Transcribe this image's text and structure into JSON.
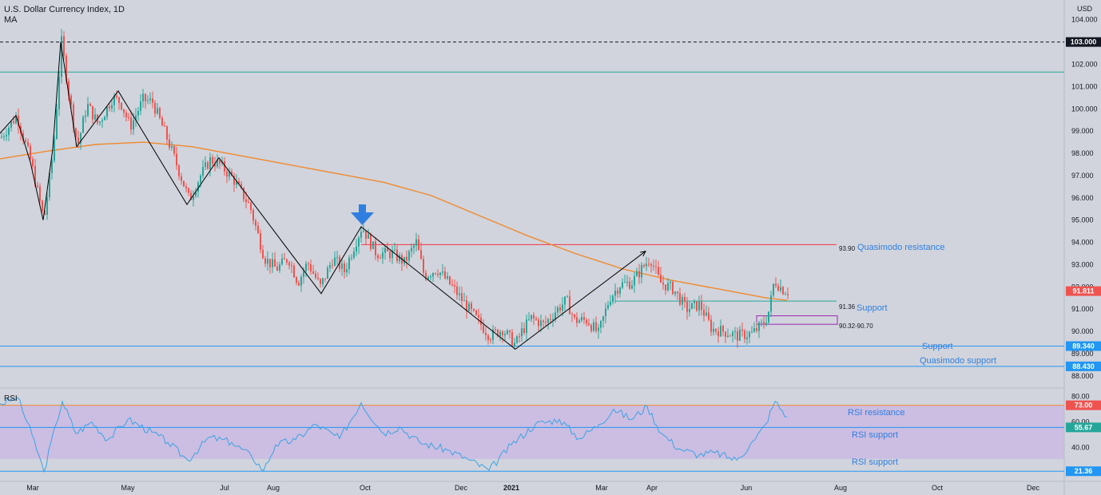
{
  "header": {
    "title": "U.S. Dollar Currency Index, 1D",
    "indicator": "MA",
    "currency": "USD"
  },
  "colors": {
    "up": "#26a69a",
    "down": "#ef5350",
    "ma": "#f0892e",
    "resistance": "#f23645",
    "support": "#2196f3",
    "text_blue": "#2f7fe0",
    "rsi_line": "#3aa3e3",
    "rsi_band": "#c9b6e4",
    "pattern": "#000000",
    "zone": "#9c27b0"
  },
  "chart_data": [
    {
      "type": "candlestick",
      "title": "U.S. Dollar Currency Index, 1D",
      "ylim": [
        87.6,
        104.6
      ],
      "y_ticks": [
        "104.000",
        "103.000",
        "102.000",
        "101.000",
        "100.000",
        "99.000",
        "98.000",
        "97.000",
        "96.000",
        "95.000",
        "94.000",
        "93.000",
        "92.000",
        "91.000",
        "90.000",
        "89.000",
        "88.000"
      ],
      "x_ticks": [
        "Mar",
        "May",
        "Jul",
        "Aug",
        "Oct",
        "Dec",
        "2021",
        "Mar",
        "Apr",
        "Jun",
        "Aug",
        "Oct",
        "Dec"
      ],
      "last_price": "91.811",
      "price_path": [
        [
          0,
          98.7
        ],
        [
          20,
          99.7
        ],
        [
          38,
          97.6
        ],
        [
          54,
          95.0
        ],
        [
          66,
          98.2
        ],
        [
          76,
          103.0
        ],
        [
          86,
          100.5
        ],
        [
          96,
          98.3
        ],
        [
          108,
          100.2
        ],
        [
          122,
          99.3
        ],
        [
          140,
          100.5
        ],
        [
          150,
          100.3
        ],
        [
          162,
          99.2
        ],
        [
          178,
          100.4
        ],
        [
          190,
          100.3
        ],
        [
          210,
          98.5
        ],
        [
          236,
          95.9
        ],
        [
          250,
          97.0
        ],
        [
          262,
          97.7
        ],
        [
          274,
          97.5
        ],
        [
          290,
          96.9
        ],
        [
          312,
          95.6
        ],
        [
          330,
          93.3
        ],
        [
          345,
          92.8
        ],
        [
          360,
          93.3
        ],
        [
          372,
          92.2
        ],
        [
          384,
          93.1
        ],
        [
          400,
          92.0
        ],
        [
          416,
          93.3
        ],
        [
          430,
          92.7
        ],
        [
          444,
          94.0
        ],
        [
          452,
          94.7
        ],
        [
          470,
          93.5
        ],
        [
          490,
          93.5
        ],
        [
          505,
          93.1
        ],
        [
          520,
          94.0
        ],
        [
          530,
          92.5
        ],
        [
          546,
          92.8
        ],
        [
          565,
          92.0
        ],
        [
          590,
          90.8
        ],
        [
          612,
          89.8
        ],
        [
          628,
          90.1
        ],
        [
          644,
          89.4
        ],
        [
          652,
          90.0
        ],
        [
          664,
          90.6
        ],
        [
          680,
          90.3
        ],
        [
          694,
          90.9
        ],
        [
          708,
          91.4
        ],
        [
          718,
          90.5
        ],
        [
          734,
          90.5
        ],
        [
          748,
          89.9
        ],
        [
          762,
          91.5
        ],
        [
          775,
          92.1
        ],
        [
          790,
          92.2
        ],
        [
          804,
          92.9
        ],
        [
          813,
          93.3
        ],
        [
          825,
          92.2
        ],
        [
          842,
          91.9
        ],
        [
          858,
          91.0
        ],
        [
          875,
          91.2
        ],
        [
          890,
          90.1
        ],
        [
          905,
          90.0
        ],
        [
          922,
          89.8
        ],
        [
          940,
          89.9
        ],
        [
          956,
          90.4
        ],
        [
          962,
          91.0
        ],
        [
          968,
          92.3
        ],
        [
          978,
          91.9
        ],
        [
          985,
          91.8
        ]
      ]
    },
    {
      "type": "line",
      "name": "MA",
      "points": [
        [
          0,
          97.75
        ],
        [
          60,
          98.1
        ],
        [
          120,
          98.4
        ],
        [
          180,
          98.5
        ],
        [
          240,
          98.3
        ],
        [
          300,
          97.9
        ],
        [
          360,
          97.5
        ],
        [
          420,
          97.1
        ],
        [
          480,
          96.7
        ],
        [
          540,
          96.1
        ],
        [
          600,
          95.2
        ],
        [
          660,
          94.3
        ],
        [
          720,
          93.5
        ],
        [
          780,
          92.8
        ],
        [
          840,
          92.3
        ],
        [
          900,
          91.9
        ],
        [
          960,
          91.5
        ],
        [
          985,
          91.4
        ]
      ]
    },
    {
      "type": "line",
      "title": "RSI",
      "ylim": [
        14,
        84
      ],
      "y_ticks": [
        "80.00",
        "60.00",
        "40.00"
      ],
      "levels": {
        "resistance": "73.00",
        "mid": "55.67",
        "low": "21.36"
      },
      "band": [
        31,
        73
      ],
      "points": [
        [
          0,
          74
        ],
        [
          22,
          79
        ],
        [
          40,
          50
        ],
        [
          55,
          21
        ],
        [
          70,
          58
        ],
        [
          78,
          76
        ],
        [
          95,
          51
        ],
        [
          115,
          60
        ],
        [
          135,
          46
        ],
        [
          160,
          62
        ],
        [
          190,
          52
        ],
        [
          210,
          44
        ],
        [
          235,
          30
        ],
        [
          262,
          48
        ],
        [
          290,
          44
        ],
        [
          315,
          33
        ],
        [
          330,
          22
        ],
        [
          345,
          42
        ],
        [
          370,
          46
        ],
        [
          395,
          58
        ],
        [
          425,
          47
        ],
        [
          452,
          75
        ],
        [
          480,
          51
        ],
        [
          500,
          56
        ],
        [
          525,
          44
        ],
        [
          560,
          38
        ],
        [
          585,
          31
        ],
        [
          612,
          22
        ],
        [
          640,
          42
        ],
        [
          670,
          58
        ],
        [
          700,
          62
        ],
        [
          725,
          47
        ],
        [
          750,
          58
        ],
        [
          768,
          70
        ],
        [
          790,
          62
        ],
        [
          810,
          72
        ],
        [
          828,
          51
        ],
        [
          850,
          39
        ],
        [
          875,
          34
        ],
        [
          895,
          36
        ],
        [
          922,
          30
        ],
        [
          945,
          46
        ],
        [
          958,
          58
        ],
        [
          970,
          76
        ],
        [
          985,
          64
        ]
      ]
    }
  ],
  "levels": {
    "top_dashed": {
      "value": 103.0,
      "label": "103.000"
    },
    "top_teal": {
      "value": 101.65
    },
    "quasimodo_resistance": {
      "value": 93.9,
      "line_label": "93.90",
      "text": "Quasimodo resistance"
    },
    "support_1": {
      "value": 91.36,
      "line_label": "91.36",
      "text": "Support"
    },
    "zone": {
      "from": 90.32,
      "to": 90.7,
      "label": "90.32-90.70"
    },
    "support_2": {
      "value": 89.34,
      "label": "89.340",
      "text": "Support"
    },
    "quasimodo_support": {
      "value": 88.43,
      "label": "88.430",
      "text": "Quasimodo support"
    }
  },
  "rsi_labels": {
    "name": "RSI",
    "resistance": "RSI resistance",
    "support_mid": "RSI support",
    "support_low": "RSI support"
  },
  "pattern_lines": {
    "main": [
      [
        0,
        98.9
      ],
      [
        20,
        99.7
      ],
      [
        38,
        97.6
      ],
      [
        54,
        95.0
      ],
      [
        66,
        98.2
      ],
      [
        76,
        103.0
      ],
      [
        96,
        98.3
      ],
      [
        148,
        100.8
      ],
      [
        234,
        95.7
      ],
      [
        274,
        97.8
      ],
      [
        402,
        91.7
      ],
      [
        452,
        94.7
      ],
      [
        645,
        89.2
      ],
      [
        808,
        93.6
      ]
    ]
  },
  "annotations": {
    "arrow_icon": "down-arrow-icon"
  }
}
